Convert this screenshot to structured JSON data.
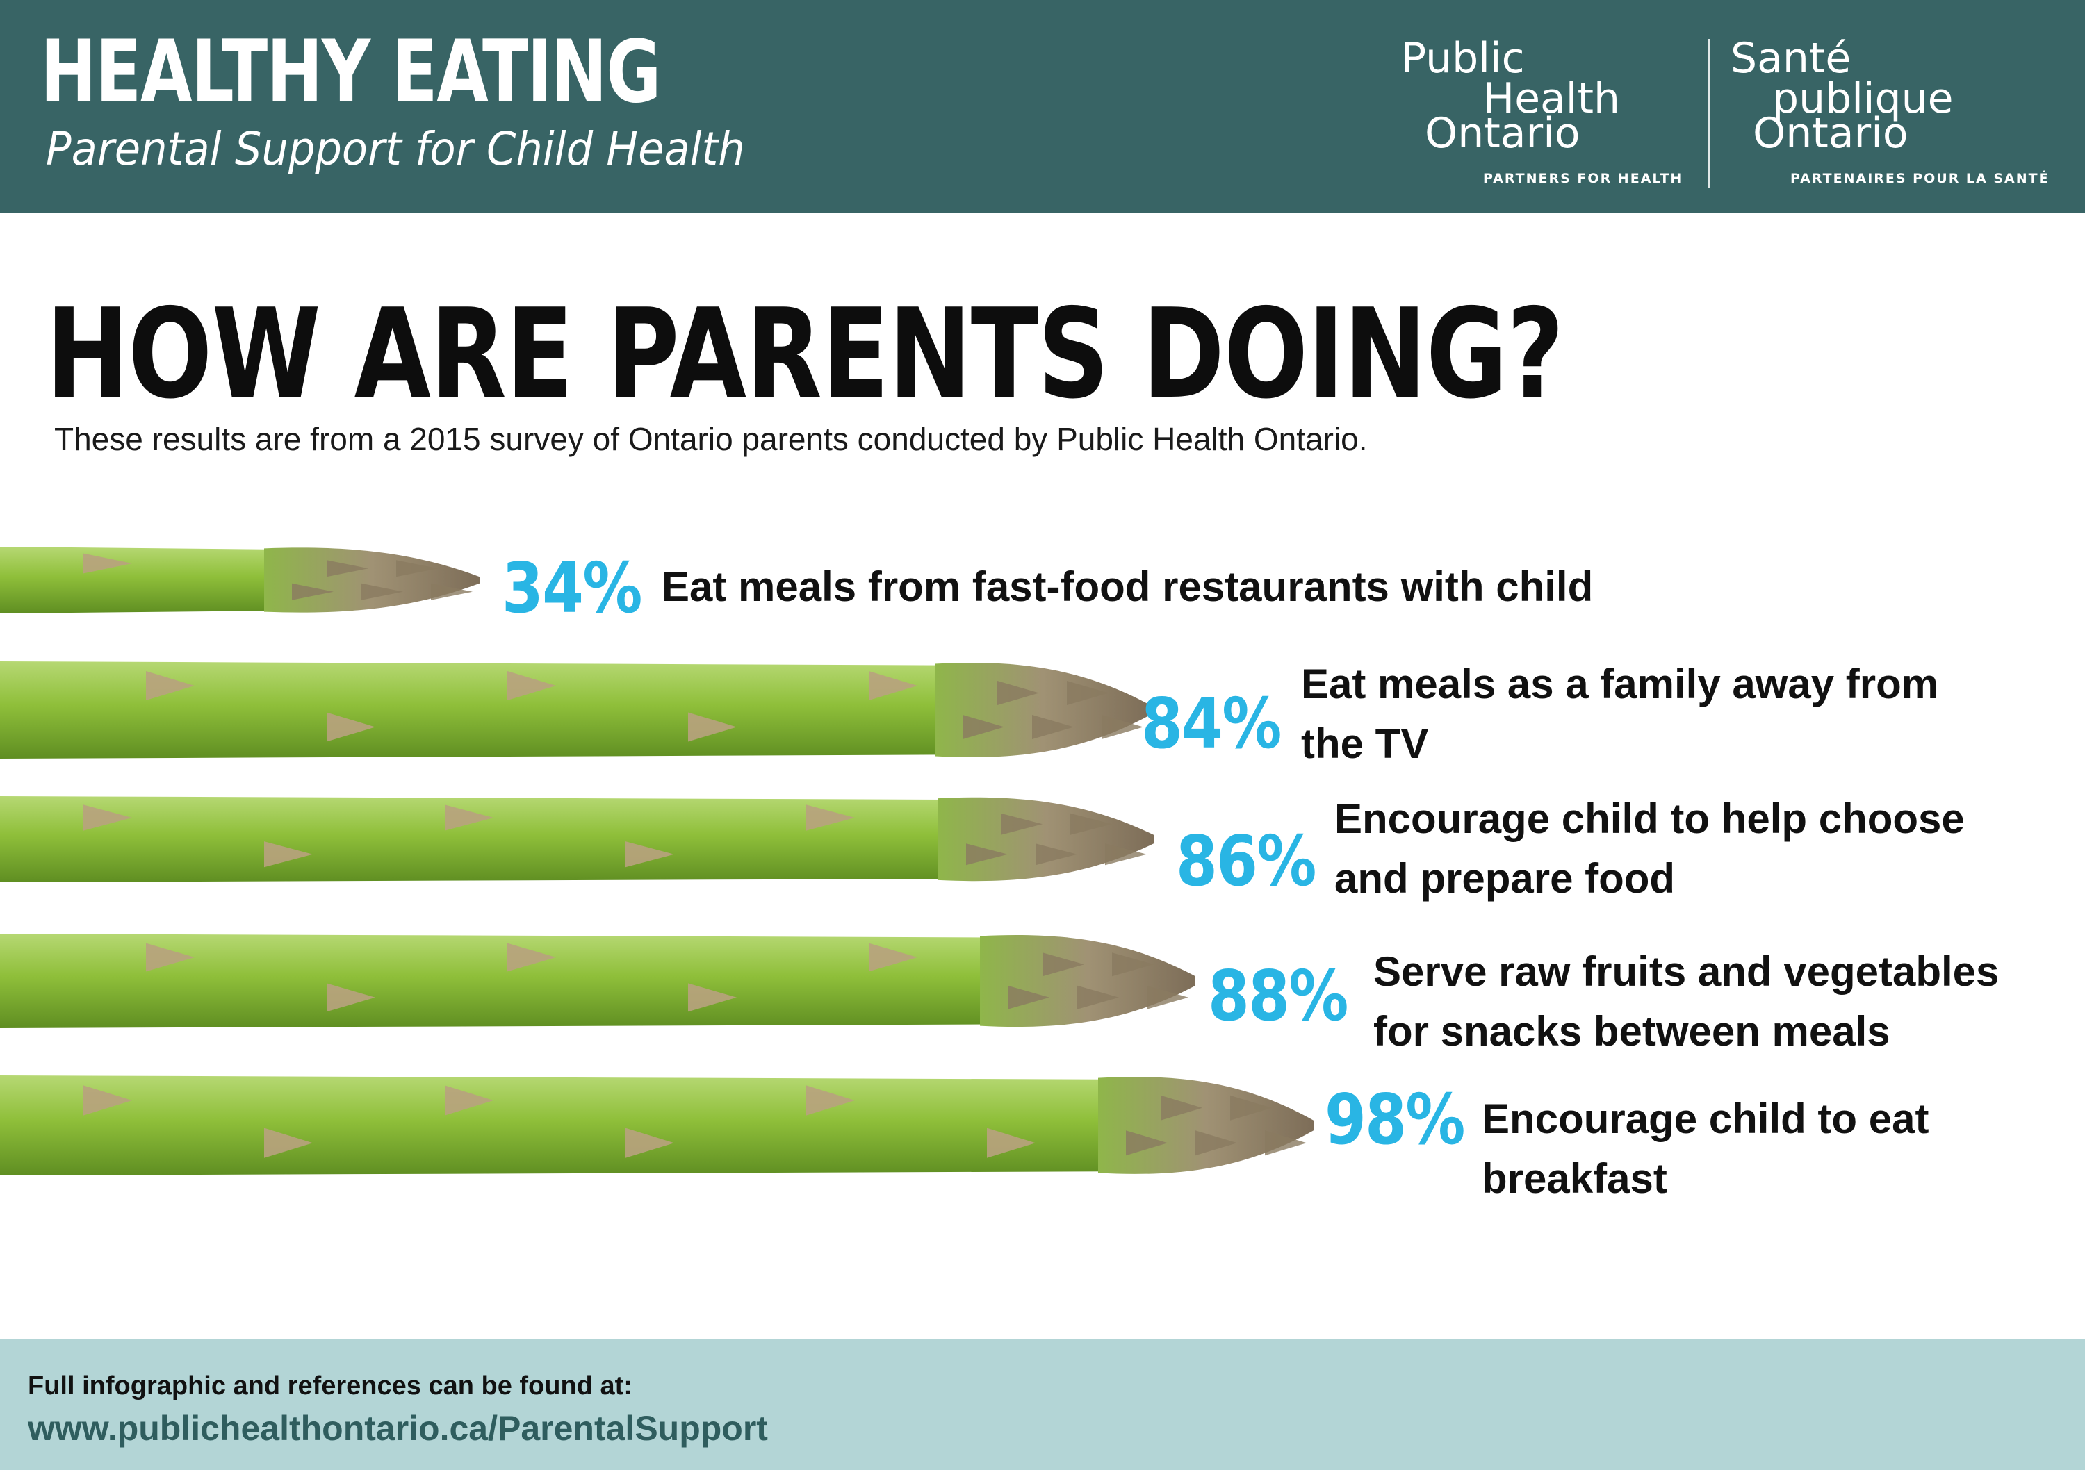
{
  "header": {
    "title": "HEALTHY EATING",
    "subtitle": "Parental Support for Child Health",
    "logo_en": {
      "line1": "Public",
      "line2": "Health",
      "line3": "Ontario",
      "tagline": "PARTNERS FOR HEALTH"
    },
    "logo_fr": {
      "line1": "Santé",
      "line2": "publique",
      "line3": "Ontario",
      "tagline": "PARTENAIRES POUR LA SANTÉ"
    },
    "background_color": "#386465"
  },
  "main": {
    "title": "HOW ARE PARENTS DOING?",
    "subtitle": "These results are from a 2015 survey of Ontario parents conducted by Public Health Ontario."
  },
  "stats": [
    {
      "percent": "34%",
      "value": 34,
      "line1": "Eat meals from fast-food restaurants with child",
      "line2": ""
    },
    {
      "percent": "84%",
      "value": 84,
      "line1": "Eat meals as a family away from",
      "line2": "the TV"
    },
    {
      "percent": "86%",
      "value": 86,
      "line1": "Encourage child to help choose",
      "line2": "and prepare food"
    },
    {
      "percent": "88%",
      "value": 88,
      "line1": "Serve raw fruits and vegetables",
      "line2": "for snacks between meals"
    },
    {
      "percent": "98%",
      "value": 98,
      "line1": "Encourage child to eat",
      "line2": "breakfast"
    }
  ],
  "footer": {
    "note": "Full infographic and references can be found at:",
    "link": "www.publichealthontario.ca/ParentalSupport",
    "background_color": "#b3d5d6"
  },
  "colors": {
    "accent_percent": "#29b5e4",
    "asparagus_stem": "#8fbf3a",
    "asparagus_tip": "#9a8a6e"
  }
}
